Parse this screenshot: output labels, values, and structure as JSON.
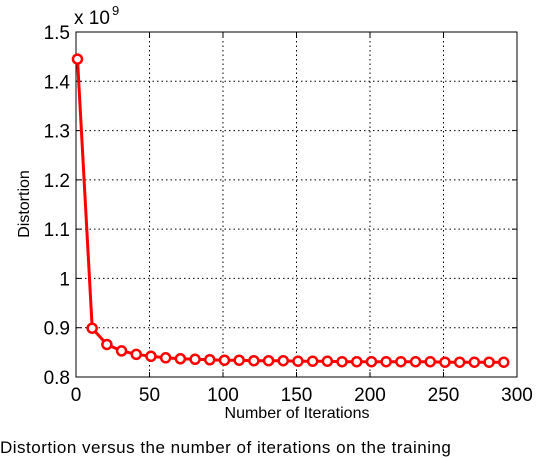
{
  "chart_data": {
    "type": "line",
    "xlabel": "Number of Iterations",
    "ylabel": "Distortion",
    "exponent_label": "x 10",
    "exponent_power": "9",
    "xlim": [
      0,
      300
    ],
    "ylim": [
      0.8,
      1.5
    ],
    "x_ticks": [
      0,
      50,
      100,
      150,
      250,
      300
    ],
    "x_tick_labels": [
      "0",
      "50",
      "100",
      "150",
      "250",
      "300"
    ],
    "x_ticks_all": [
      0,
      50,
      100,
      150,
      200,
      250,
      300
    ],
    "x_tick_labels_all": [
      "0",
      "50",
      "100",
      "150",
      "200",
      "250",
      "300"
    ],
    "y_ticks": [
      0.8,
      0.9,
      1.0,
      1.1,
      1.2,
      1.3,
      1.4,
      1.5
    ],
    "y_tick_labels": [
      "0.8",
      "0.9",
      "1",
      "1.1",
      "1.2",
      "1.3",
      "1.4",
      "1.5"
    ],
    "grid": true,
    "series_color": "#ff0000",
    "x": [
      1,
      11,
      21,
      31,
      41,
      51,
      61,
      71,
      81,
      91,
      101,
      111,
      121,
      131,
      141,
      151,
      161,
      171,
      181,
      191,
      201,
      211,
      221,
      231,
      241,
      251,
      261,
      271,
      281,
      291
    ],
    "y": [
      1.445,
      0.899,
      0.866,
      0.853,
      0.846,
      0.842,
      0.839,
      0.837,
      0.836,
      0.835,
      0.834,
      0.834,
      0.833,
      0.833,
      0.833,
      0.832,
      0.832,
      0.832,
      0.831,
      0.831,
      0.831,
      0.831,
      0.831,
      0.831,
      0.831,
      0.83,
      0.83,
      0.83,
      0.83,
      0.83
    ]
  },
  "caption": "Distortion versus the number of iterations on the training"
}
